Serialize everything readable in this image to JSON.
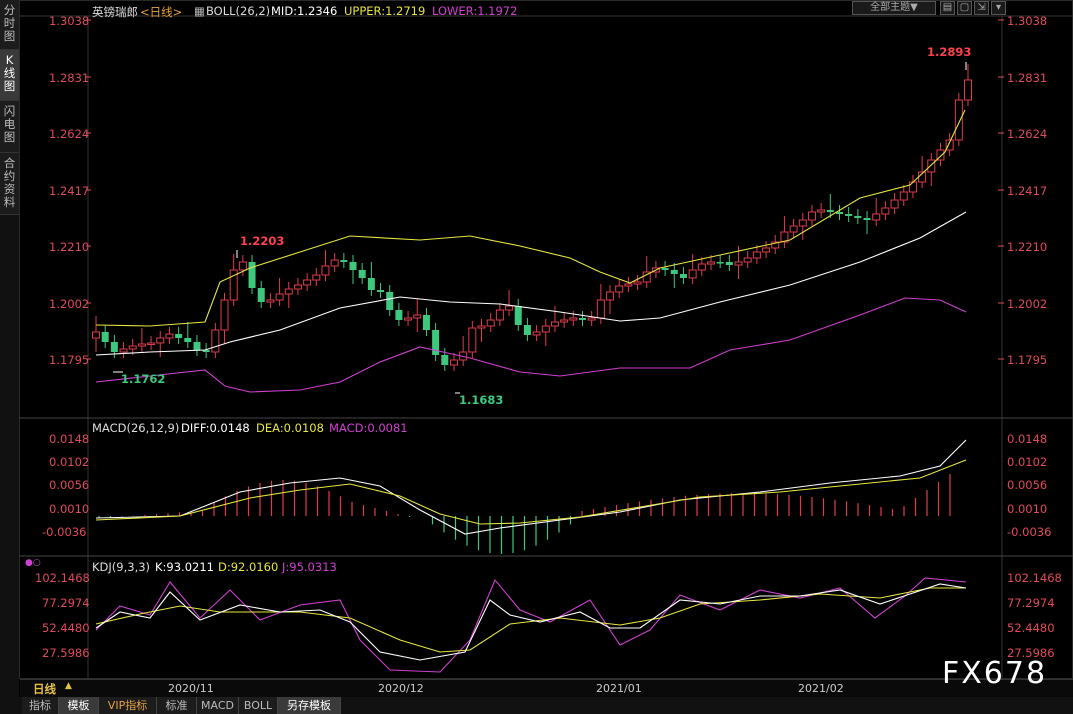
{
  "sidebar": {
    "tabs": [
      {
        "label": "分时图"
      },
      {
        "label": "K线图"
      },
      {
        "label": "闪电图"
      },
      {
        "label": "合约资料"
      }
    ]
  },
  "header": {
    "symbol": "英镑瑞郎",
    "period": "<日线>",
    "boll_label": "BOLL(26,2)",
    "mid": "MID:1.2346",
    "upper": "UPPER:1.2719",
    "lower": "LOWER:1.1972",
    "theme_select": "全部主题▼",
    "colors": {
      "mid": "#ffffff",
      "upper": "#e6e640",
      "lower": "#d040d0",
      "up": "#e03c4c",
      "down": "#3ec87e"
    }
  },
  "price_axis": {
    "right": [
      "1.3038",
      "1.2831",
      "1.2624",
      "1.2417",
      "1.2210",
      "1.2002",
      "1.1795"
    ],
    "left": [
      "1.3038",
      "1.2831",
      "1.2624",
      "1.2417",
      "1.2210",
      "1.2002",
      "1.1795"
    ]
  },
  "annotations": {
    "high": "1.2893",
    "peak_nov": "1.2203",
    "low_nov": "1.1762",
    "low_dec": "1.1683"
  },
  "macd": {
    "label": "MACD(26,12,9)",
    "diff": "DIFF:0.0148",
    "dea": "DEA:0.0108",
    "macd": "MACD:0.0081",
    "axis": [
      "0.0148",
      "0.0102",
      "0.0056",
      "0.0010",
      "-0.0036"
    ]
  },
  "kdj": {
    "label": "KDJ(9,3,3)",
    "k": "K:93.0211",
    "d": "D:92.0160",
    "j": "J:95.0313",
    "axis": [
      "102.1468",
      "77.2974",
      "52.4480",
      "27.5986"
    ]
  },
  "time_axis": [
    "2020/11",
    "2020/12",
    "2021/01",
    "2021/02"
  ],
  "period_selector": "日线",
  "bottom_tabs": [
    "指标",
    "模板",
    "VIP指标",
    "标准",
    "MACD",
    "BOLL",
    "另存模板"
  ],
  "watermark": "FX678"
}
